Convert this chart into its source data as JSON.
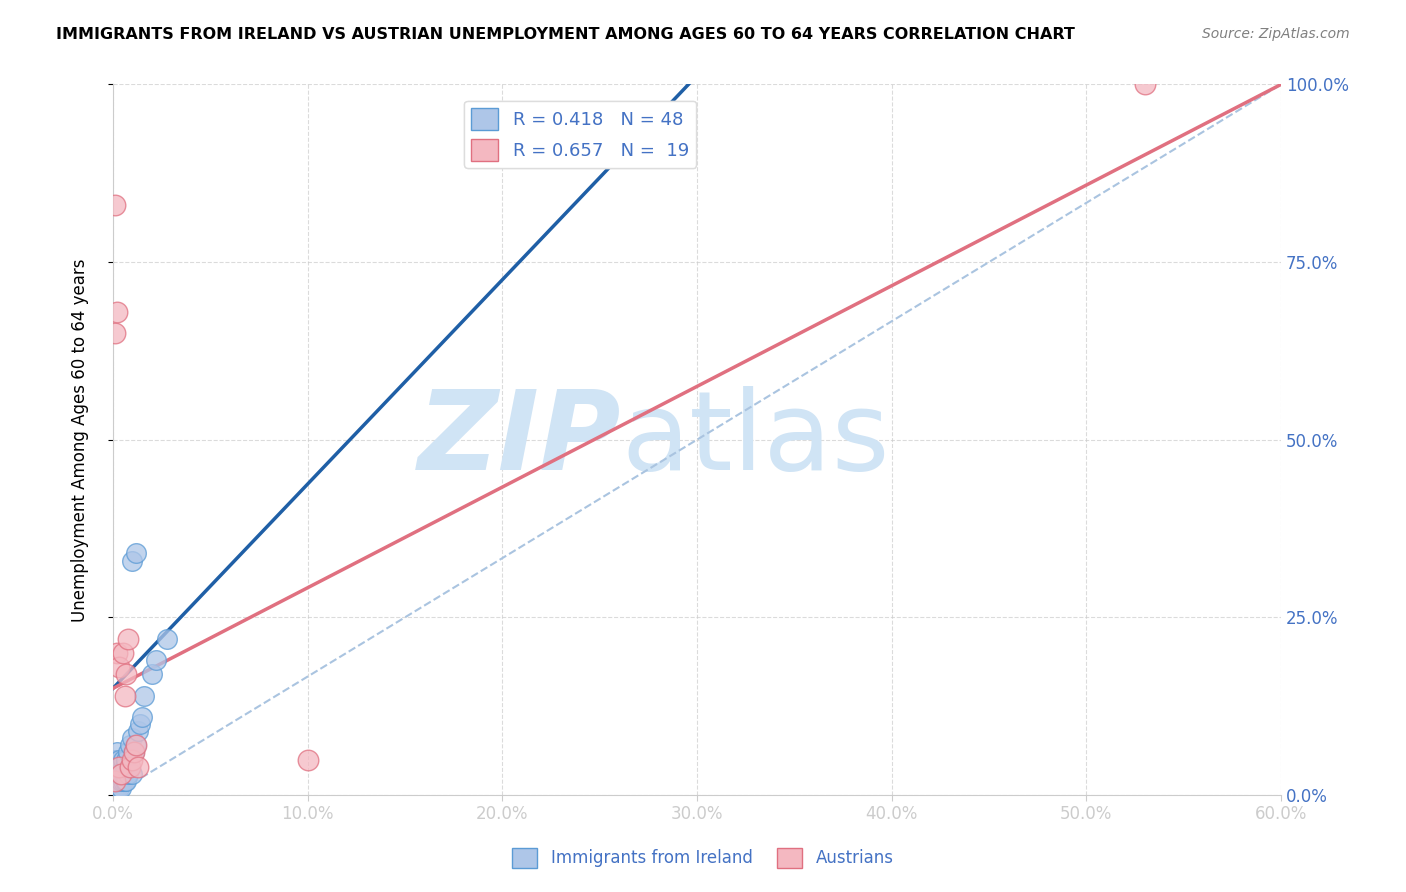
{
  "title": "IMMIGRANTS FROM IRELAND VS AUSTRIAN UNEMPLOYMENT AMONG AGES 60 TO 64 YEARS CORRELATION CHART",
  "source": "Source: ZipAtlas.com",
  "xlabel_vals": [
    0.0,
    0.1,
    0.2,
    0.3,
    0.4,
    0.5,
    0.6
  ],
  "ylabel_vals": [
    0.0,
    0.25,
    0.5,
    0.75,
    1.0
  ],
  "ylabel_label": "Unemployment Among Ages 60 to 64 years",
  "xlim": [
    0.0,
    0.6
  ],
  "ylim": [
    0.0,
    1.0
  ],
  "legend1_label": "R = 0.418   N = 48",
  "legend2_label": "R = 0.657   N =  19",
  "legend1_face": "#aec6e8",
  "legend2_face": "#f4b8c1",
  "blue_edge": "#5b9bd5",
  "pink_edge": "#e07080",
  "blue_scatter_x": [
    0.001,
    0.001,
    0.001,
    0.001,
    0.001,
    0.001,
    0.001,
    0.002,
    0.002,
    0.002,
    0.002,
    0.002,
    0.002,
    0.003,
    0.003,
    0.003,
    0.003,
    0.003,
    0.004,
    0.004,
    0.004,
    0.004,
    0.005,
    0.005,
    0.005,
    0.005,
    0.006,
    0.006,
    0.006,
    0.007,
    0.007,
    0.008,
    0.008,
    0.009,
    0.009,
    0.01,
    0.01,
    0.011,
    0.012,
    0.013,
    0.014,
    0.015,
    0.016,
    0.02,
    0.022,
    0.028,
    0.01,
    0.012
  ],
  "blue_scatter_y": [
    0.01,
    0.01,
    0.02,
    0.02,
    0.03,
    0.04,
    0.05,
    0.01,
    0.02,
    0.03,
    0.04,
    0.05,
    0.06,
    0.01,
    0.02,
    0.03,
    0.04,
    0.05,
    0.01,
    0.02,
    0.03,
    0.04,
    0.02,
    0.03,
    0.04,
    0.05,
    0.02,
    0.03,
    0.04,
    0.02,
    0.05,
    0.03,
    0.06,
    0.04,
    0.07,
    0.03,
    0.08,
    0.06,
    0.07,
    0.09,
    0.1,
    0.11,
    0.14,
    0.17,
    0.19,
    0.22,
    0.33,
    0.34
  ],
  "pink_scatter_x": [
    0.001,
    0.001,
    0.001,
    0.002,
    0.002,
    0.003,
    0.003,
    0.004,
    0.005,
    0.006,
    0.007,
    0.008,
    0.009,
    0.01,
    0.011,
    0.012,
    0.013,
    0.1,
    0.53
  ],
  "pink_scatter_y": [
    0.02,
    0.65,
    0.83,
    0.2,
    0.68,
    0.04,
    0.18,
    0.03,
    0.2,
    0.14,
    0.17,
    0.22,
    0.04,
    0.05,
    0.06,
    0.07,
    0.04,
    0.05,
    1.0
  ],
  "blue_trend_x0": 0.0,
  "blue_trend_y0": 0.15,
  "blue_trend_x1": 0.04,
  "blue_trend_y1": 0.265,
  "pink_trend_x0": 0.0,
  "pink_trend_y0": 0.15,
  "pink_trend_x1": 0.6,
  "pink_trend_y1": 1.0,
  "blue_line_color": "#1f5fa6",
  "pink_line_color": "#e07080",
  "dashed_line_color": "#aac4e0",
  "watermark_zip": "ZIP",
  "watermark_atlas": "atlas",
  "watermark_color": "#d0e4f5",
  "tick_color": "#4472c4",
  "grid_color": "#cccccc"
}
